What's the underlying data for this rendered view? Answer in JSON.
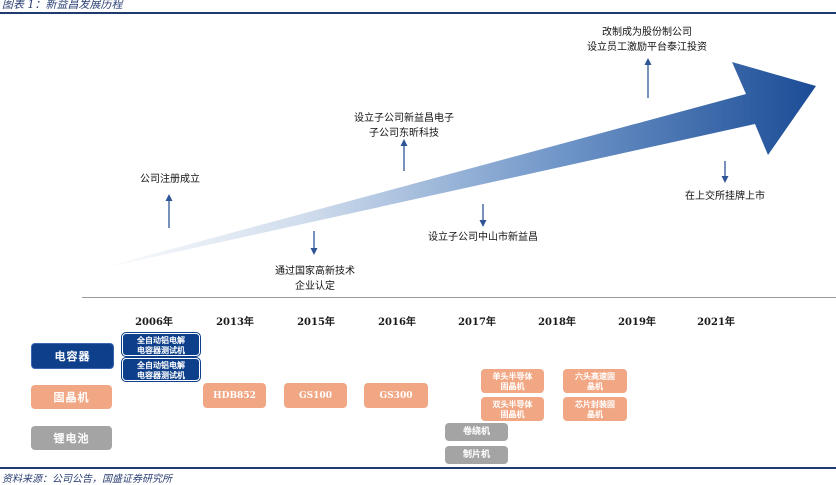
{
  "figure_title": "图表 1：新益昌发展历程",
  "source": "资料来源：公司公告，国盛证券研究所",
  "colors": {
    "rule": "#1f3a6e",
    "capacitor": "#0d3f8a",
    "wafer": "#f2a784",
    "battery": "#a4a4a4",
    "arrow_dark": "#1b4c96"
  },
  "events": [
    {
      "text": "公司注册成立"
    },
    {
      "text": "通过国家高新技术\n企业认定"
    },
    {
      "text": "设立子公司新益昌电子\n子公司东昕科技"
    },
    {
      "text": "设立子公司中山市新益昌"
    },
    {
      "text": "改制成为股份制公司\n设立员工激励平台泰江投资"
    },
    {
      "text": "在上交所挂牌上市"
    }
  ],
  "years": [
    "2006年",
    "2013年",
    "2015年",
    "2016年",
    "2017年",
    "2018年",
    "2019年",
    "2021年"
  ],
  "categories": [
    {
      "label": "电容器"
    },
    {
      "label": "固晶机"
    },
    {
      "label": "锂电池"
    }
  ],
  "products": {
    "capacitor": [
      "全自动铝电解\n电容器测试机",
      "全自动铝电解\n电容器测试机"
    ],
    "wafer": [
      "HDB852",
      "GS100",
      "GS300",
      "单头半导体\n固晶机",
      "双头半导体\n固晶机",
      "六头高速固\n晶机",
      "芯片封装固\n晶机"
    ],
    "battery": [
      "卷绕机",
      "制片机"
    ]
  }
}
